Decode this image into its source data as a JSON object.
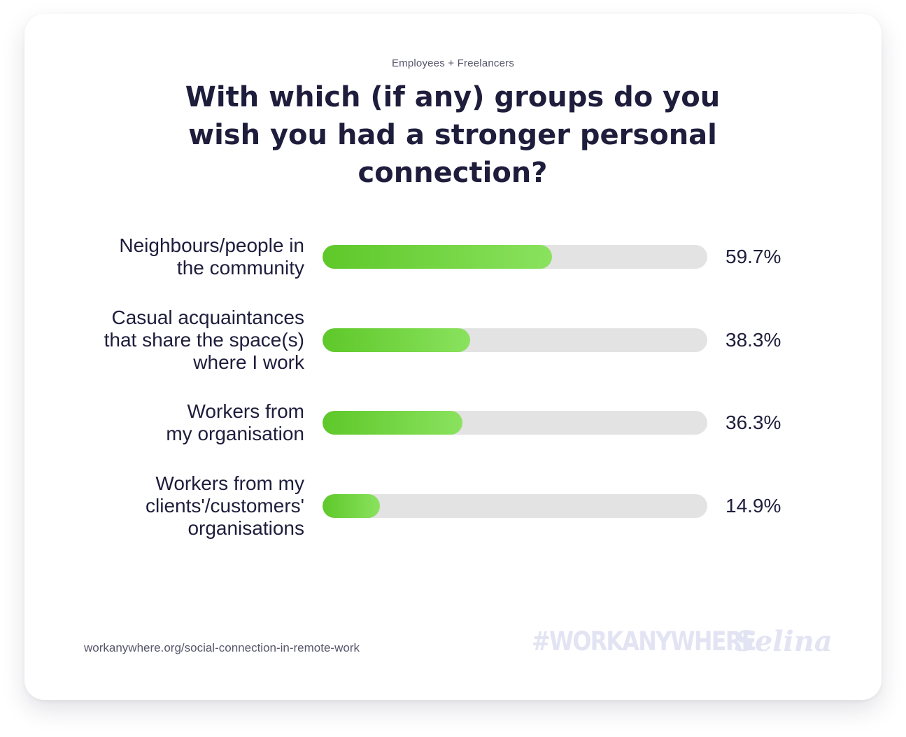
{
  "subtitle": "Employees + Freelancers",
  "source": "workanywhere.org/social-connection-in-remote-work",
  "brand": {
    "hashtag": "#WORKANYWHERE",
    "logo": "Selina"
  },
  "colors": {
    "bar_fill_start": "#5ec829",
    "bar_fill_end": "#8ae25e",
    "bar_track": "#e3e3e3",
    "text": "#1e1d3c",
    "brand_light": "#e2e4f3"
  },
  "chart_data": {
    "type": "bar",
    "orientation": "horizontal",
    "title": "With which (if any) groups do you wish you had a stronger personal connection?",
    "categories": [
      "Neighbours/people in\nthe community",
      "Casual acquaintances\nthat share the space(s)\nwhere I work",
      "Workers from\nmy organisation",
      "Workers from my\nclients'/customers'\norganisations"
    ],
    "values": [
      59.7,
      38.3,
      36.3,
      14.9
    ],
    "value_labels": [
      "59.7%",
      "38.3%",
      "36.3%",
      "14.9%"
    ],
    "unit": "%",
    "xlim": [
      0,
      100
    ],
    "grid": false,
    "legend": "none"
  }
}
